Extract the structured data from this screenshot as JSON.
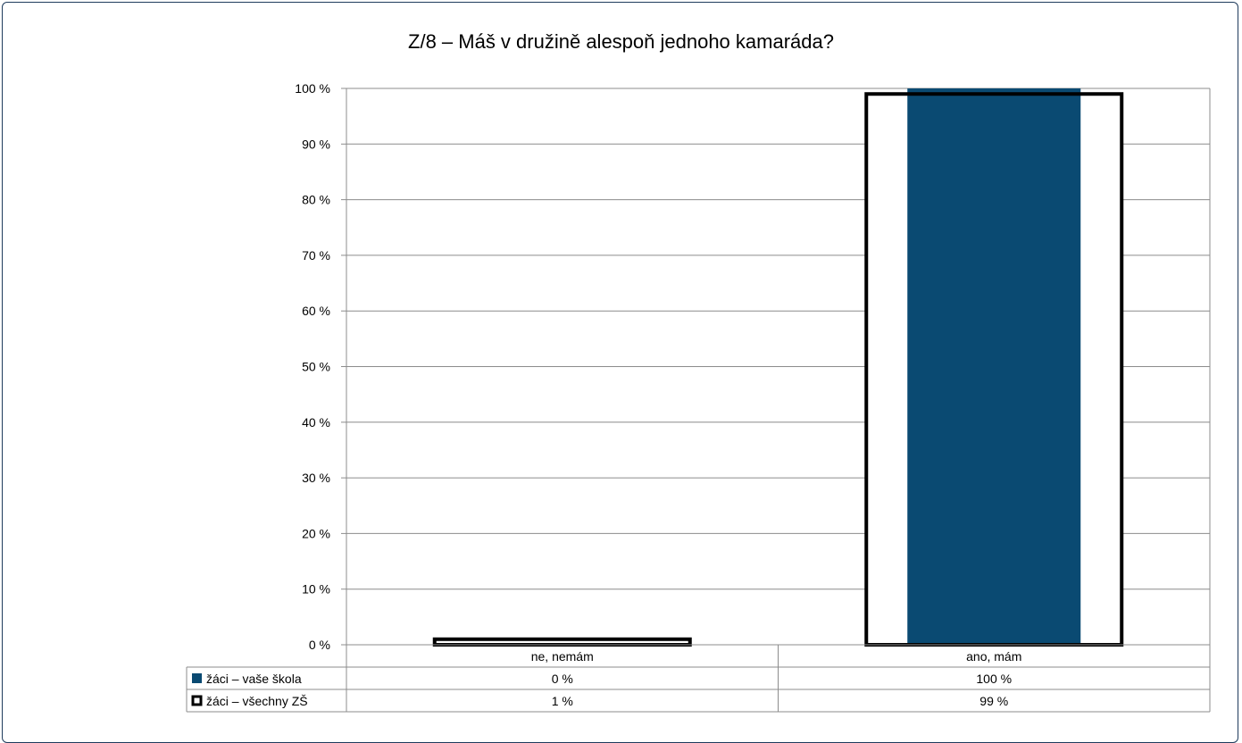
{
  "chart_data": {
    "type": "bar",
    "title": "Z/8 – Máš v družině alespoň jednoho kamaráda?",
    "categories": [
      "ne, nemám",
      "ano, mám"
    ],
    "series": [
      {
        "name": "žáci – vaše škola",
        "values": [
          0,
          100
        ],
        "labels": [
          "0 %",
          "100 %"
        ],
        "color": "#0a4a72",
        "style": "filled"
      },
      {
        "name": "žáci – všechny ZŠ",
        "values": [
          1,
          99
        ],
        "labels": [
          "1 %",
          "99 %"
        ],
        "color": "#000000",
        "style": "outline"
      }
    ],
    "ylim": [
      0,
      100
    ],
    "yticks": [
      "0 %",
      "10 %",
      "20 %",
      "30 %",
      "40 %",
      "50 %",
      "60 %",
      "70 %",
      "80 %",
      "90 %",
      "100 %"
    ],
    "grid": true,
    "legend": "data-table"
  }
}
